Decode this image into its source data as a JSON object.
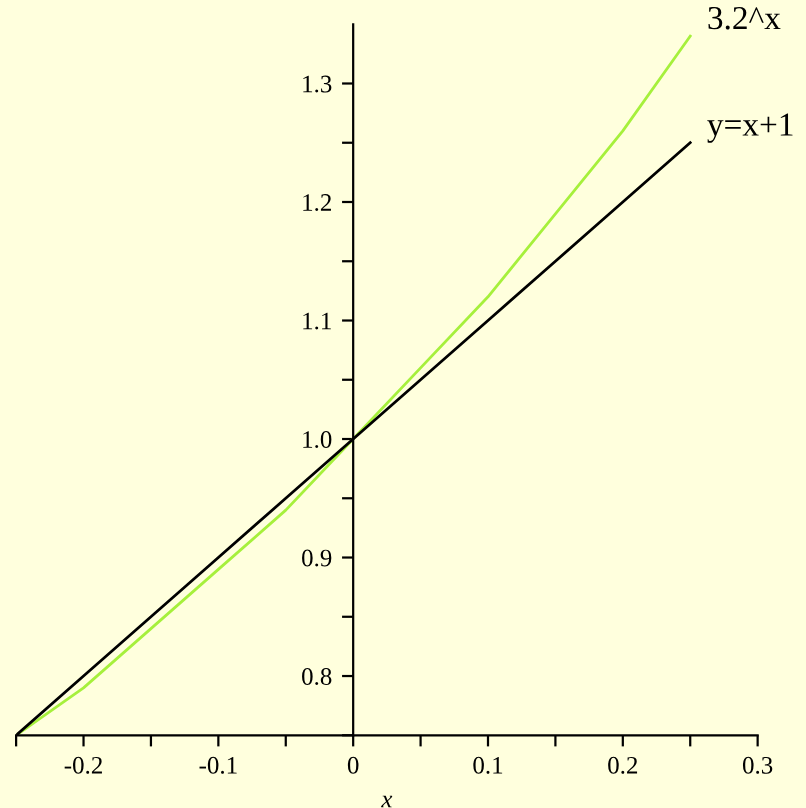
{
  "chart_data": {
    "type": "line",
    "xlabel": "x",
    "x": [
      -0.25,
      -0.2,
      -0.15,
      -0.1,
      -0.05,
      0,
      0.05,
      0.1,
      0.15,
      0.2,
      0.25
    ],
    "series": [
      {
        "name": "3.2^x",
        "color": "#a6f03c",
        "values": [
          0.75,
          0.79,
          0.84,
          0.89,
          0.94,
          1.0,
          1.06,
          1.12,
          1.19,
          1.26,
          1.34
        ]
      },
      {
        "name": "y=x+1",
        "color": "#000000",
        "values": [
          0.75,
          0.8,
          0.85,
          0.9,
          0.95,
          1.0,
          1.05,
          1.1,
          1.15,
          1.2,
          1.25
        ]
      }
    ],
    "xlim": [
      -0.25,
      0.3
    ],
    "ylim": [
      0.75,
      1.35
    ],
    "xticks": [
      {
        "value": -0.25,
        "label": null
      },
      -0.2,
      {
        "value": -0.15,
        "label": null
      },
      -0.1,
      {
        "value": -0.05,
        "label": null
      },
      0,
      {
        "value": 0.05,
        "label": null
      },
      0.1,
      {
        "value": 0.15,
        "label": null
      },
      0.2,
      {
        "value": 0.25,
        "label": null
      },
      0.3
    ],
    "yticks": [
      {
        "value": 0.75,
        "label": null
      },
      0.8,
      {
        "value": 0.85,
        "label": null
      },
      0.9,
      {
        "value": 0.95,
        "label": null
      },
      {
        "value": 1.0,
        "label": "1.0"
      },
      {
        "value": 1.05,
        "label": null
      },
      1.1,
      {
        "value": 1.15,
        "label": null
      },
      1.2,
      {
        "value": 1.25,
        "label": null
      },
      1.3
    ],
    "grid": false,
    "legend": false,
    "marker": "none",
    "line_style": "solid"
  }
}
